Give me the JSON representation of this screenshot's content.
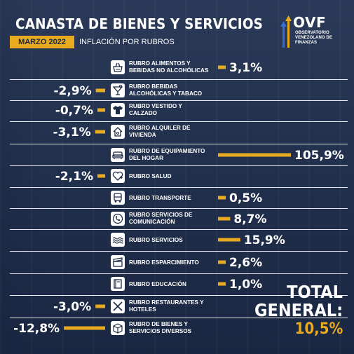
{
  "header": {
    "title": "CANASTA DE BIENES Y SERVICIOS",
    "date_badge": "MARZO 2022",
    "subtitle": "INFLACIÓN POR RUBROS"
  },
  "logo": {
    "name": "OVF",
    "subtitle": "OBSERVATORIO VENEZOLANO DE FINANZAS"
  },
  "colors": {
    "bar": "#e8aa1f",
    "row_line": "#ffffff",
    "text": "#ffffff",
    "icon_bg": "#ffffff",
    "icon_fg": "#1d2a44"
  },
  "chart_data": {
    "type": "bar",
    "orientation": "horizontal",
    "unit": "%",
    "categories": [
      "RUBRO ALIMENTOS Y BEBIDAS NO ALCOHÓLICAS",
      "RUBRO BEBIDAS ALCOHÓLICAS Y TABACO",
      "RUBRO VESTIDO Y CALZADO",
      "RUBRO ALQUILER DE VIVIENDA",
      "RUBRO DE EQUIPAMIENTO DEL HOGAR",
      "RUBRO SALUD",
      "RUBRO TRANSPORTE",
      "RUBRO SERVICIOS DE COMUNICACIÓN",
      "RUBRO SERVICIOS",
      "RUBRO ESPARCIMIENTO",
      "RUBRO EDUCACIÓN",
      "RUBRO RESTAURANTES Y HOTELES",
      "RUBRO DE BIENES Y SERVICIOS DIVERSOS"
    ],
    "label_lines": [
      [
        "RUBRO ALIMENTOS Y",
        "BEBIDAS NO ALCOHÓLICAS"
      ],
      [
        "RUBRO BEBIDAS",
        "ALCOHÓLICAS Y TABACO"
      ],
      [
        "RUBRO VESTIDO Y",
        "CALZADO"
      ],
      [
        "RUBRO ALQUILER DE",
        "VIVIENDA"
      ],
      [
        "RUBRO DE EQUIPAMIENTO",
        "DEL HOGAR"
      ],
      [
        "RUBRO SALUD"
      ],
      [
        "RUBRO TRANSPORTE"
      ],
      [
        "RUBRO SERVICIOS DE",
        "COMUNICACIÓN"
      ],
      [
        "RUBRO SERVICIOS"
      ],
      [
        "RUBRO ESPARCIMIENTO"
      ],
      [
        "RUBRO EDUCACIÓN"
      ],
      [
        "RUBRO RESTAURANTES Y",
        "HOTELES"
      ],
      [
        "RUBRO DE BIENES Y",
        "SERVICIOS DIVERSOS"
      ]
    ],
    "values": [
      3.1,
      -2.9,
      -0.7,
      -3.1,
      105.9,
      -2.1,
      0.5,
      8.7,
      15.9,
      2.6,
      1.0,
      -3.0,
      -12.8
    ],
    "value_labels": [
      "3,1%",
      "-2,9%",
      "-0,7%",
      "-3,1%",
      "105,9%",
      "-2,1%",
      "0,5%",
      "8,7%",
      "15,9%",
      "2,6%",
      "1,0%",
      "-3,0%",
      "-12,8%"
    ],
    "icons": [
      "grocery-basket-icon",
      "cocktail-glass-icon",
      "shirt-icon",
      "house-key-icon",
      "sofa-icon",
      "heart-plus-icon",
      "bus-icon",
      "phone-call-icon",
      "water-waves-icon",
      "clapperboard-icon",
      "book-icon",
      "fork-knife-icon",
      "box-icon"
    ]
  },
  "total": {
    "label_line1": "TOTAL",
    "label_line2": "GENERAL:",
    "value": 10.5,
    "value_label": "10,5%"
  }
}
